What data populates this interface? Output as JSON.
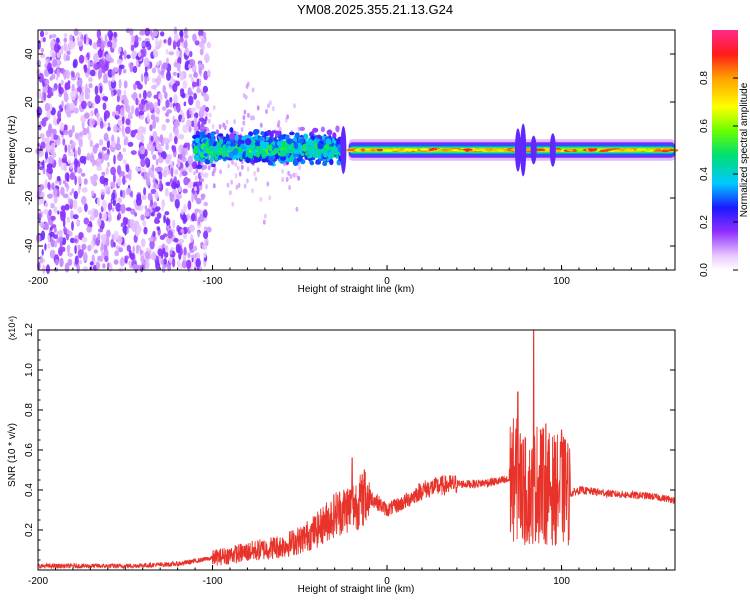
{
  "title": "YM08.2025.355.21.13.G24",
  "chart_data": [
    {
      "type": "heatmap",
      "xlabel": "Height of straight line (km)",
      "ylabel": "Frequency (Hz)",
      "xlim": [
        -200,
        165
      ],
      "ylim": [
        -50,
        50
      ],
      "xticks": [
        -200,
        -100,
        0,
        100
      ],
      "yticks": [
        -40,
        -20,
        0,
        20,
        40
      ],
      "colorbar": {
        "label": "Normalized spectral amplitude",
        "range": [
          0,
          1
        ],
        "ticks": [
          "0.0",
          "0.2",
          "0.4",
          "0.6",
          "0.8"
        ],
        "tick_values": [
          0.0,
          0.2,
          0.4,
          0.6,
          0.8
        ]
      },
      "regions": [
        {
          "x": [
            -200,
            -110
          ],
          "freq_spread": 50,
          "level": 0.2,
          "pattern": "scattered"
        },
        {
          "x": [
            -110,
            -25
          ],
          "freq_spread": 15,
          "level": 0.35,
          "pattern": "clustered near 0 Hz"
        },
        {
          "x": [
            -25,
            165
          ],
          "freq_spread": 4,
          "level": 0.9,
          "pattern": "narrow band at 0 Hz"
        }
      ]
    },
    {
      "type": "line",
      "xlabel": "Height of straight line (km)",
      "ylabel": "SNR (10 * v/v)",
      "y_multiplier": "(x10⁴)",
      "xlim": [
        -200,
        165
      ],
      "ylim": [
        0,
        1.2
      ],
      "xticks": [
        -200,
        -100,
        0,
        100
      ],
      "yticks": [
        "0.2",
        "0.4",
        "0.6",
        "0.8",
        "1.0",
        "1.2"
      ],
      "ytick_values": [
        0.2,
        0.4,
        0.6,
        0.8,
        1.0,
        1.2
      ],
      "color": "#e8332a",
      "series": [
        {
          "x": [
            -200,
            -150,
            -120,
            -100,
            -80,
            -60,
            -50,
            -40,
            -30,
            -20,
            -10,
            0,
            10,
            20,
            30,
            40,
            50,
            60,
            70,
            75,
            78,
            82,
            86,
            90,
            95,
            100,
            105,
            110,
            130,
            150,
            165
          ],
          "values": [
            0.02,
            0.02,
            0.03,
            0.06,
            0.09,
            0.12,
            0.15,
            0.2,
            0.28,
            0.32,
            0.37,
            0.3,
            0.34,
            0.4,
            0.42,
            0.43,
            0.43,
            0.44,
            0.45,
            0.45,
            0.4,
            0.38,
            0.44,
            0.42,
            0.4,
            0.4,
            0.38,
            0.4,
            0.38,
            0.37,
            0.35
          ]
        }
      ],
      "spikes": [
        {
          "x": -20,
          "value": 0.56
        },
        {
          "x": -13,
          "value": 0.5
        },
        {
          "x": 75,
          "value": 0.89
        },
        {
          "x": 78,
          "value": 0.65
        },
        {
          "x": 84,
          "value": 1.2
        },
        {
          "x": 88,
          "value": 0.7
        },
        {
          "x": 91,
          "value": 0.73
        },
        {
          "x": 100,
          "value": 0.7
        },
        {
          "x": 102,
          "value": 0.65
        }
      ]
    }
  ]
}
